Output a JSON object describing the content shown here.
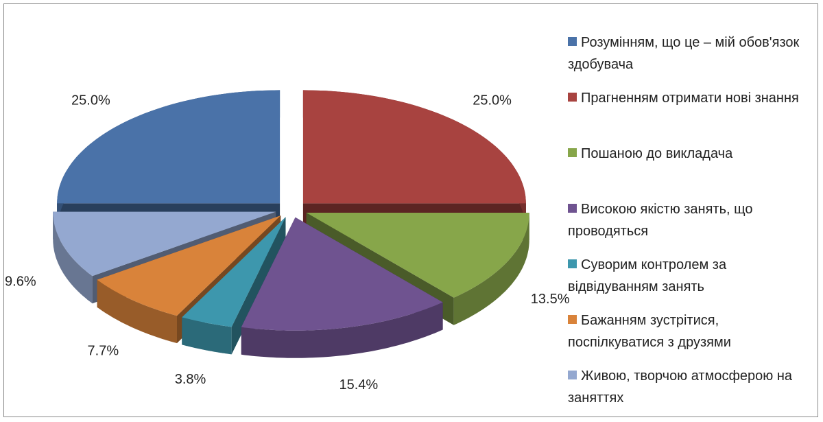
{
  "chart_data": {
    "type": "pie",
    "categories": [
      "Розумінням, що це – мій обов'язок здобувача",
      "Прагненням отримати нові знання",
      "Пошаною до викладача",
      "Високою якістю занять, що проводяться",
      "Суворим контролем за відвідуванням занять",
      "Бажанням зустрітися, поспілкуватися з друзями",
      "Живою, творчою атмосферою на заняттях"
    ],
    "values": [
      25.0,
      25.0,
      13.5,
      15.4,
      3.8,
      7.7,
      9.6
    ],
    "value_labels": [
      "25.0%",
      "25.0%",
      "13.5%",
      "15.4%",
      "3.8%",
      "7.7%",
      "9.6%"
    ],
    "colors": [
      "#4a72a8",
      "#a84340",
      "#87a64a",
      "#6f5390",
      "#3d97ad",
      "#d9833a",
      "#94a8d0"
    ],
    "legend": "right"
  }
}
